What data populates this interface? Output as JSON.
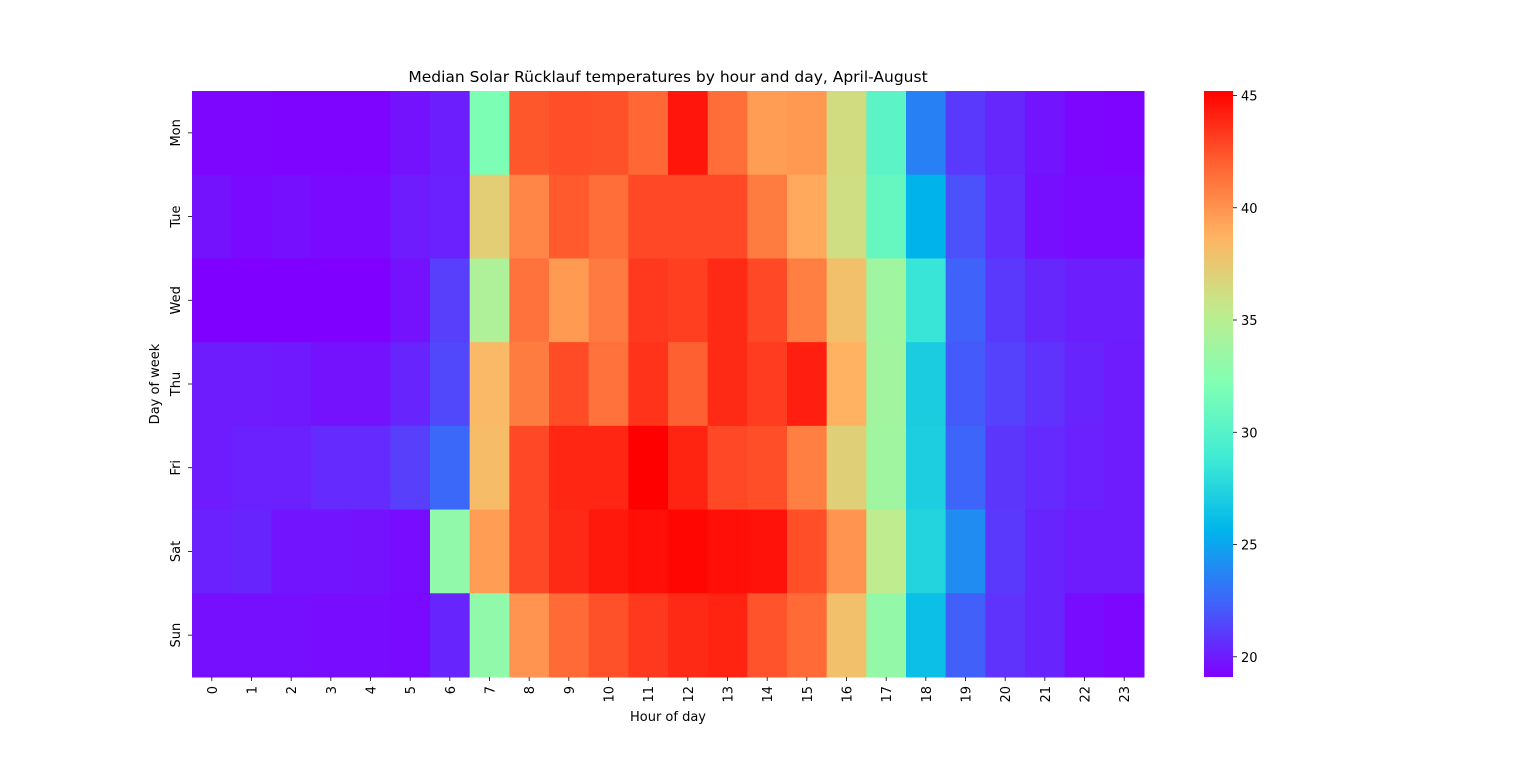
{
  "chart_data": {
    "type": "heatmap",
    "title": "Median Solar Rücklauf temperatures by hour and day, April-August",
    "xlabel": "Hour of day",
    "ylabel": "Day of week",
    "x_categories": [
      "0",
      "1",
      "2",
      "3",
      "4",
      "5",
      "6",
      "7",
      "8",
      "9",
      "10",
      "11",
      "12",
      "13",
      "14",
      "15",
      "16",
      "17",
      "18",
      "19",
      "20",
      "21",
      "22",
      "23"
    ],
    "y_categories": [
      "Mon",
      "Tue",
      "Wed",
      "Thu",
      "Fri",
      "Sat",
      "Sun"
    ],
    "colormap": "rainbow",
    "vmin": 19.1,
    "vmax": 45.2,
    "colorbar_ticks": [
      20,
      25,
      30,
      35,
      40,
      45
    ],
    "values": [
      [
        19.3,
        19.3,
        19.2,
        19.2,
        19.2,
        19.7,
        20.1,
        32.0,
        42.3,
        42.6,
        42.5,
        41.7,
        44.5,
        41.5,
        39.6,
        39.8,
        36.3,
        30.3,
        23.6,
        21.0,
        20.4,
        19.8,
        19.3,
        19.2
      ],
      [
        19.7,
        19.4,
        19.6,
        19.4,
        19.4,
        20.0,
        20.2,
        37.2,
        40.5,
        42.2,
        41.5,
        42.8,
        42.8,
        42.8,
        40.9,
        39.1,
        36.2,
        30.8,
        25.6,
        21.8,
        20.6,
        19.6,
        19.4,
        19.4
      ],
      [
        19.1,
        19.1,
        19.1,
        19.1,
        19.1,
        19.7,
        21.2,
        34.5,
        41.3,
        39.7,
        41.0,
        43.3,
        43.1,
        43.8,
        42.8,
        40.8,
        38.0,
        33.8,
        28.5,
        22.4,
        21.0,
        20.4,
        20.1,
        20.1
      ],
      [
        20.0,
        20.0,
        19.9,
        19.7,
        19.7,
        20.3,
        21.5,
        38.4,
        40.9,
        42.7,
        41.3,
        43.5,
        42.0,
        43.8,
        43.2,
        44.2,
        38.7,
        33.9,
        27.0,
        22.1,
        21.3,
        20.8,
        20.3,
        20.0
      ],
      [
        20.0,
        20.2,
        20.2,
        20.5,
        20.5,
        21.2,
        22.6,
        38.2,
        42.8,
        43.9,
        43.9,
        45.2,
        44.0,
        42.8,
        42.6,
        40.8,
        37.0,
        33.8,
        27.1,
        22.5,
        20.9,
        20.5,
        20.2,
        20.0
      ],
      [
        20.2,
        20.3,
        19.8,
        19.8,
        19.7,
        19.5,
        33.0,
        39.6,
        42.8,
        43.8,
        44.4,
        44.7,
        45.0,
        44.7,
        44.6,
        42.6,
        40.0,
        35.3,
        27.4,
        24.0,
        21.0,
        20.3,
        20.0,
        20.0
      ],
      [
        19.6,
        19.6,
        19.6,
        19.5,
        19.5,
        19.4,
        20.3,
        33.0,
        40.0,
        41.6,
        42.5,
        43.3,
        43.8,
        44.0,
        42.4,
        41.6,
        38.0,
        33.1,
        26.2,
        22.3,
        20.8,
        20.3,
        19.5,
        19.3
      ]
    ]
  }
}
